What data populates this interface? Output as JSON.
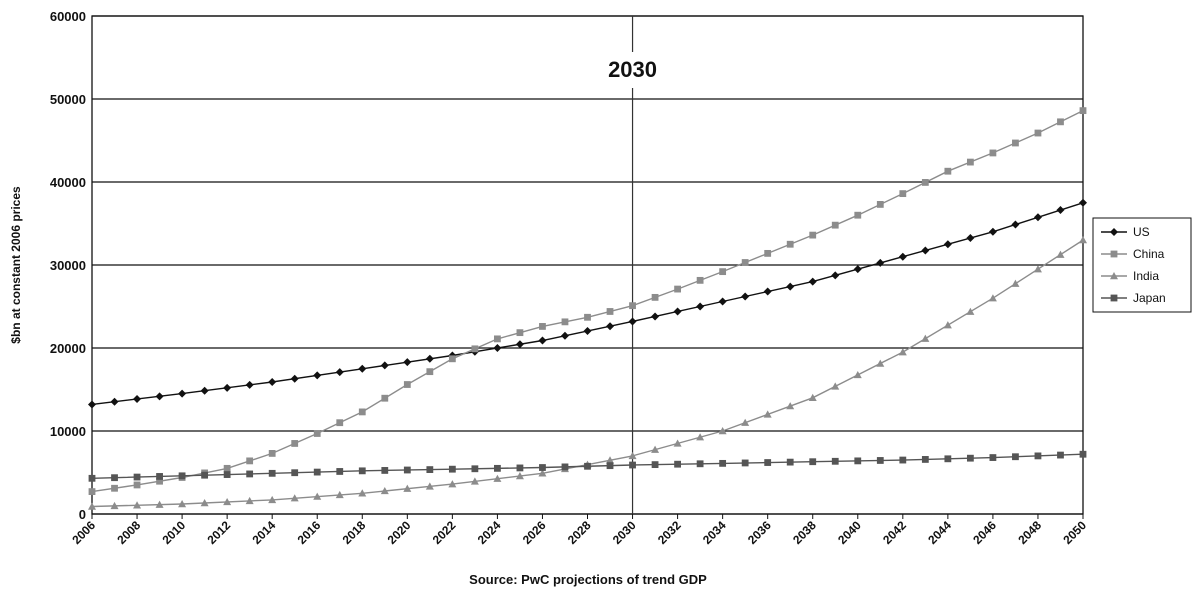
{
  "chart_data": {
    "type": "line",
    "title": "",
    "xlabel": "Source: PwC projections of trend GDP",
    "ylabel": "$bn at constant 2006 prices",
    "xlim": [
      2006,
      2050
    ],
    "ylim": [
      0,
      60000
    ],
    "x_ticks": [
      2006,
      2008,
      2010,
      2012,
      2014,
      2016,
      2018,
      2020,
      2022,
      2024,
      2026,
      2028,
      2030,
      2032,
      2034,
      2036,
      2038,
      2040,
      2042,
      2044,
      2046,
      2048,
      2050
    ],
    "y_ticks": [
      0,
      10000,
      20000,
      30000,
      40000,
      50000,
      60000
    ],
    "grid": "horizontal",
    "legend_position": "right",
    "annotation": {
      "x": 2030,
      "label": "2030"
    },
    "series": [
      {
        "name": "US",
        "marker": "diamond",
        "color": "#111111",
        "x": [
          2006,
          2010,
          2014,
          2018,
          2022,
          2026,
          2030,
          2034,
          2038,
          2042,
          2046,
          2050
        ],
        "values": [
          13200,
          14500,
          15900,
          17500,
          19100,
          20900,
          23200,
          25600,
          28000,
          31000,
          34000,
          37500
        ]
      },
      {
        "name": "China",
        "marker": "square",
        "color": "#8c8c8c",
        "x": [
          2006,
          2008,
          2010,
          2012,
          2014,
          2016,
          2018,
          2020,
          2022,
          2024,
          2026,
          2028,
          2030,
          2032,
          2034,
          2036,
          2038,
          2040,
          2042,
          2044,
          2046,
          2048,
          2050
        ],
        "values": [
          2700,
          3500,
          4400,
          5500,
          7300,
          9700,
          12300,
          15600,
          18700,
          21100,
          22600,
          23700,
          25100,
          27100,
          29200,
          31400,
          33600,
          36000,
          38600,
          41300,
          43500,
          45900,
          48600
        ]
      },
      {
        "name": "India",
        "marker": "triangle",
        "color": "#8c8c8c",
        "x": [
          2006,
          2010,
          2014,
          2018,
          2022,
          2026,
          2030,
          2034,
          2038,
          2042,
          2046,
          2050
        ],
        "values": [
          900,
          1200,
          1700,
          2500,
          3600,
          4900,
          7000,
          10000,
          14000,
          19500,
          26000,
          33000
        ]
      },
      {
        "name": "Japan",
        "marker": "square",
        "color": "#555555",
        "x": [
          2006,
          2010,
          2014,
          2018,
          2022,
          2026,
          2030,
          2034,
          2038,
          2042,
          2046,
          2050
        ],
        "values": [
          4300,
          4600,
          4900,
          5200,
          5400,
          5600,
          5900,
          6100,
          6300,
          6500,
          6800,
          7200
        ]
      }
    ]
  }
}
